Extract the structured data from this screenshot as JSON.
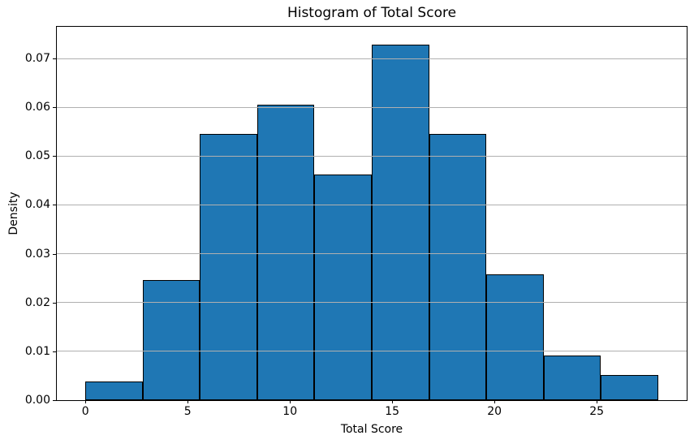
{
  "chart_data": {
    "type": "bar",
    "subtype": "histogram",
    "title": "Histogram of Total Score",
    "xlabel": "Total Score",
    "ylabel": "Density",
    "bin_edges": [
      0,
      2.8,
      5.6,
      8.4,
      11.2,
      14.0,
      16.8,
      19.6,
      22.4,
      25.2,
      28.0
    ],
    "densities": [
      0.0039,
      0.0246,
      0.0545,
      0.0606,
      0.0462,
      0.0728,
      0.0545,
      0.0257,
      0.0091,
      0.0051
    ],
    "x_ticks": [
      0,
      5,
      10,
      15,
      20,
      25
    ],
    "y_ticks": [
      0,
      0.01,
      0.02,
      0.03,
      0.04,
      0.05,
      0.06,
      0.07
    ],
    "y_tick_labels": [
      "0.00",
      "0.01",
      "0.02",
      "0.03",
      "0.04",
      "0.05",
      "0.06",
      "0.07"
    ],
    "xlim": [
      -1.4,
      29.4
    ],
    "ylim": [
      0,
      0.0765
    ],
    "grid": "y",
    "legend": "none",
    "colors": {
      "bar_fill": "#1f77b4",
      "bar_edge": "#000000",
      "grid": "#b0b0b0",
      "text": "#000000",
      "background": "#ffffff"
    }
  }
}
